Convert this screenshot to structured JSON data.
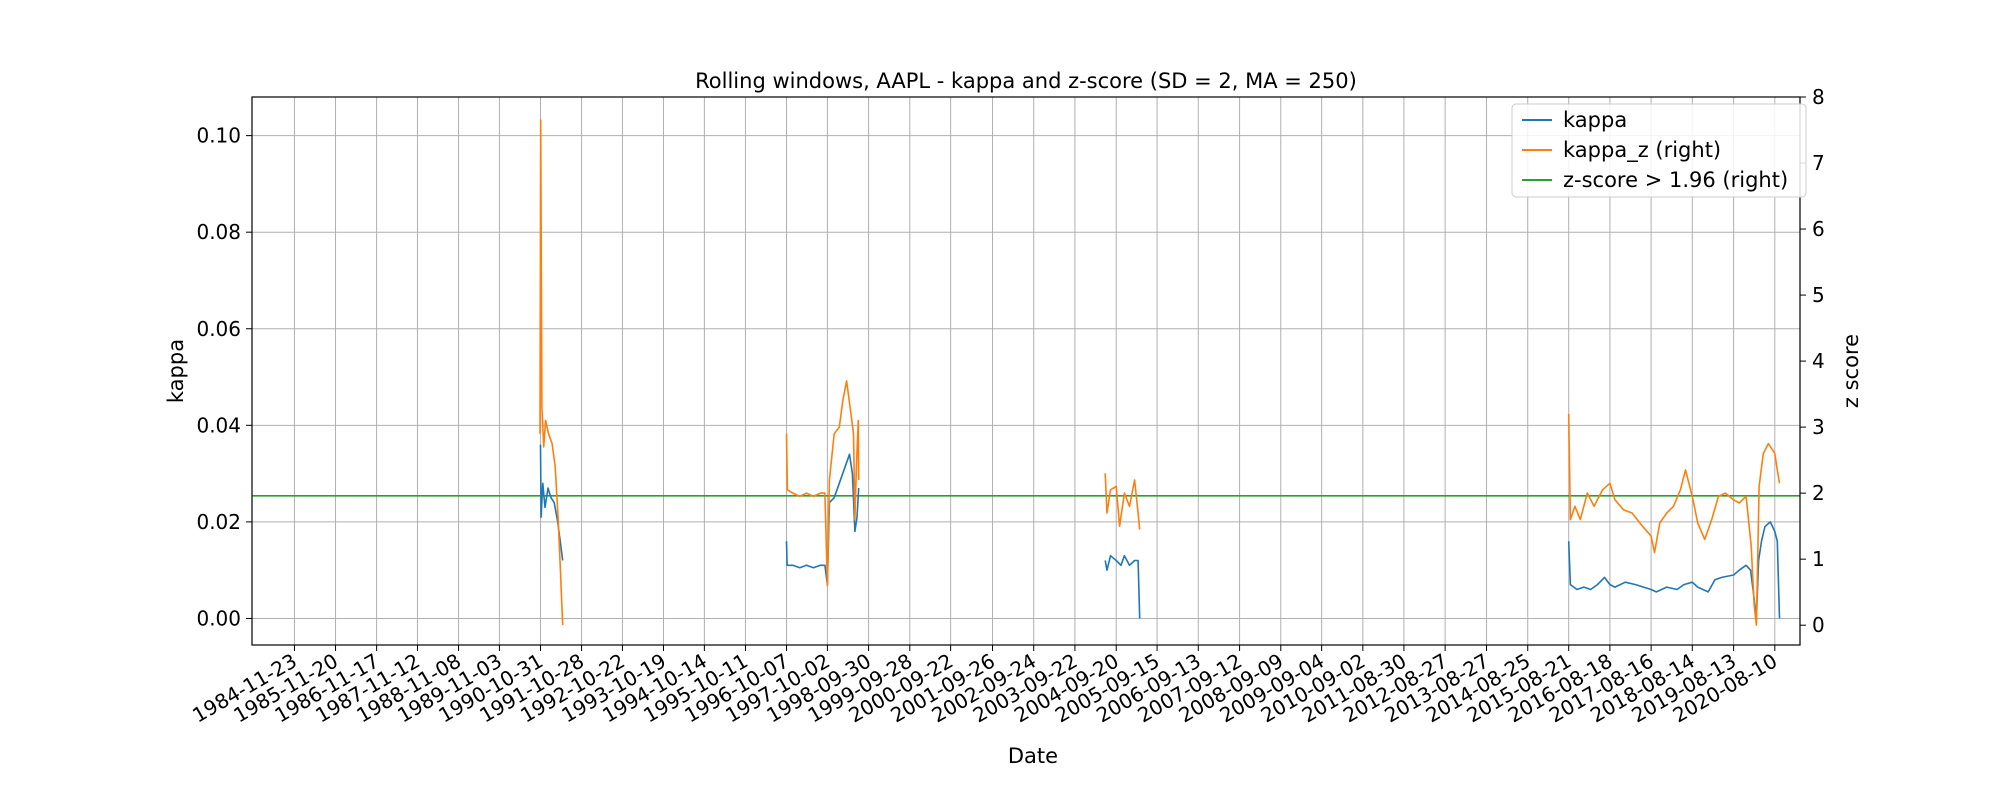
{
  "chart_data": {
    "type": "line",
    "title": "Rolling windows, AAPL - kappa and z-score (SD = 2, MA = 250)",
    "xlabel": "Date",
    "ylabel": "kappa",
    "ylabel_right": "z score",
    "x_tick_labels": [
      "1984-11-23",
      "1985-11-20",
      "1986-11-17",
      "1987-11-12",
      "1988-11-08",
      "1989-11-03",
      "1990-10-31",
      "1991-10-28",
      "1992-10-22",
      "1993-10-19",
      "1994-10-14",
      "1995-10-11",
      "1996-10-07",
      "1997-10-02",
      "1998-09-30",
      "1999-09-28",
      "2000-09-22",
      "2001-09-26",
      "2002-09-24",
      "2003-09-22",
      "2004-09-20",
      "2005-09-15",
      "2006-09-13",
      "2007-09-12",
      "2008-09-09",
      "2009-09-04",
      "2010-09-02",
      "2011-08-30",
      "2012-08-27",
      "2013-08-27",
      "2014-08-25",
      "2015-08-21",
      "2016-08-18",
      "2017-08-16",
      "2018-08-14",
      "2019-08-13",
      "2020-08-10"
    ],
    "x_range": [
      "1983-11-15",
      "2021-03-20"
    ],
    "ylim_left": [
      -0.0055,
      0.108
    ],
    "yticks_left": [
      "0.00",
      "0.02",
      "0.04",
      "0.06",
      "0.08",
      "0.10"
    ],
    "ylim_right": [
      -0.3,
      8.0
    ],
    "yticks_right": [
      "0",
      "1",
      "2",
      "3",
      "4",
      "5",
      "6",
      "7",
      "8"
    ],
    "grid": true,
    "legend_position": "top-right",
    "series": [
      {
        "name": "kappa",
        "axis": "left",
        "color": "#1f77b4",
        "segments": [
          [
            [
              "1990-10-31",
              0.036
            ],
            [
              "1990-11-05",
              0.021
            ],
            [
              "1990-11-20",
              0.028
            ],
            [
              "1990-12-10",
              0.023
            ],
            [
              "1991-01-05",
              0.027
            ],
            [
              "1991-02-01",
              0.025
            ],
            [
              "1991-03-01",
              0.024
            ],
            [
              "1991-04-01",
              0.02
            ],
            [
              "1991-05-15",
              0.012
            ]
          ],
          [
            [
              "1996-10-07",
              0.016
            ],
            [
              "1996-10-12",
              0.011
            ],
            [
              "1996-12-01",
              0.011
            ],
            [
              "1997-02-01",
              0.0105
            ],
            [
              "1997-04-01",
              0.011
            ],
            [
              "1997-06-01",
              0.0105
            ],
            [
              "1997-08-01",
              0.011
            ],
            [
              "1997-09-10",
              0.011
            ],
            [
              "1997-10-02",
              0.007
            ],
            [
              "1997-10-20",
              0.024
            ],
            [
              "1997-12-01",
              0.025
            ],
            [
              "1998-01-15",
              0.028
            ],
            [
              "1998-03-01",
              0.031
            ],
            [
              "1998-04-15",
              0.034
            ],
            [
              "1998-05-10",
              0.03
            ],
            [
              "1998-06-01",
              0.018
            ],
            [
              "1998-06-20",
              0.021
            ],
            [
              "1998-07-05",
              0.027
            ]
          ],
          [
            [
              "2004-06-15",
              0.012
            ],
            [
              "2004-07-01",
              0.01
            ],
            [
              "2004-08-01",
              0.013
            ],
            [
              "2004-09-20",
              0.012
            ],
            [
              "2004-11-01",
              0.011
            ],
            [
              "2004-12-01",
              0.013
            ],
            [
              "2005-01-15",
              0.011
            ],
            [
              "2005-03-01",
              0.012
            ],
            [
              "2005-04-01",
              0.012
            ],
            [
              "2005-04-15",
              0.0
            ]
          ],
          [
            [
              "2015-08-21",
              0.016
            ],
            [
              "2015-09-05",
              0.007
            ],
            [
              "2015-11-01",
              0.006
            ],
            [
              "2016-01-01",
              0.0065
            ],
            [
              "2016-03-01",
              0.006
            ],
            [
              "2016-05-01",
              0.007
            ],
            [
              "2016-07-01",
              0.0085
            ],
            [
              "2016-08-18",
              0.007
            ],
            [
              "2016-10-01",
              0.0065
            ],
            [
              "2017-01-01",
              0.0075
            ],
            [
              "2017-04-01",
              0.007
            ],
            [
              "2017-08-16",
              0.006
            ],
            [
              "2017-10-01",
              0.0055
            ],
            [
              "2018-01-01",
              0.0065
            ],
            [
              "2018-04-01",
              0.006
            ],
            [
              "2018-06-01",
              0.007
            ],
            [
              "2018-08-14",
              0.0075
            ],
            [
              "2018-10-01",
              0.0065
            ],
            [
              "2019-01-01",
              0.0055
            ],
            [
              "2019-03-01",
              0.008
            ],
            [
              "2019-05-01",
              0.0085
            ],
            [
              "2019-08-13",
              0.009
            ],
            [
              "2019-10-01",
              0.01
            ],
            [
              "2019-12-01",
              0.011
            ],
            [
              "2020-01-10",
              0.01
            ],
            [
              "2020-02-10",
              0.004
            ],
            [
              "2020-03-01",
              0.0
            ],
            [
              "2020-03-20",
              0.012
            ],
            [
              "2020-04-15",
              0.016
            ],
            [
              "2020-05-15",
              0.019
            ],
            [
              "2020-07-01",
              0.02
            ],
            [
              "2020-08-10",
              0.018
            ],
            [
              "2020-09-01",
              0.016
            ],
            [
              "2020-09-20",
              0.0
            ]
          ]
        ]
      },
      {
        "name": "kappa_z (right)",
        "axis": "right",
        "color": "#ff7f0e",
        "segments": [
          [
            [
              "1990-10-27",
              2.9
            ],
            [
              "1990-11-02",
              7.65
            ],
            [
              "1990-11-12",
              3.3
            ],
            [
              "1990-11-28",
              2.7
            ],
            [
              "1990-12-15",
              3.1
            ],
            [
              "1991-01-10",
              2.9
            ],
            [
              "1991-02-10",
              2.75
            ],
            [
              "1991-03-10",
              2.4
            ],
            [
              "1991-04-05",
              1.6
            ],
            [
              "1991-04-25",
              0.8
            ],
            [
              "1991-05-15",
              0.0
            ]
          ],
          [
            [
              "1996-10-07",
              2.9
            ],
            [
              "1996-10-15",
              2.05
            ],
            [
              "1996-12-01",
              2.0
            ],
            [
              "1997-02-01",
              1.95
            ],
            [
              "1997-04-01",
              2.0
            ],
            [
              "1997-06-01",
              1.95
            ],
            [
              "1997-08-01",
              2.0
            ],
            [
              "1997-09-10",
              2.0
            ],
            [
              "1997-10-02",
              0.6
            ],
            [
              "1997-10-20",
              2.2
            ],
            [
              "1997-12-01",
              2.9
            ],
            [
              "1998-01-15",
              3.0
            ],
            [
              "1998-02-15",
              3.4
            ],
            [
              "1998-03-20",
              3.7
            ],
            [
              "1998-04-20",
              3.3
            ],
            [
              "1998-05-20",
              2.9
            ],
            [
              "1998-06-01",
              1.6
            ],
            [
              "1998-06-15",
              2.4
            ],
            [
              "1998-07-01",
              3.1
            ],
            [
              "1998-07-05",
              2.2
            ]
          ],
          [
            [
              "2004-06-15",
              2.3
            ],
            [
              "2004-07-01",
              1.7
            ],
            [
              "2004-08-01",
              2.05
            ],
            [
              "2004-09-20",
              2.1
            ],
            [
              "2004-10-20",
              1.5
            ],
            [
              "2004-12-01",
              2.0
            ],
            [
              "2005-01-15",
              1.8
            ],
            [
              "2005-03-01",
              2.2
            ],
            [
              "2005-04-01",
              1.7
            ],
            [
              "2005-04-15",
              1.45
            ]
          ],
          [
            [
              "2015-08-21",
              3.2
            ],
            [
              "2015-09-05",
              1.6
            ],
            [
              "2015-10-15",
              1.8
            ],
            [
              "2015-12-01",
              1.6
            ],
            [
              "2016-02-01",
              2.0
            ],
            [
              "2016-04-01",
              1.8
            ],
            [
              "2016-06-15",
              2.05
            ],
            [
              "2016-08-18",
              2.15
            ],
            [
              "2016-10-01",
              1.9
            ],
            [
              "2016-12-15",
              1.75
            ],
            [
              "2017-03-01",
              1.7
            ],
            [
              "2017-06-01",
              1.5
            ],
            [
              "2017-08-16",
              1.35
            ],
            [
              "2017-09-15",
              1.1
            ],
            [
              "2017-11-01",
              1.55
            ],
            [
              "2018-01-01",
              1.7
            ],
            [
              "2018-03-01",
              1.8
            ],
            [
              "2018-05-01",
              2.05
            ],
            [
              "2018-06-15",
              2.35
            ],
            [
              "2018-08-14",
              1.95
            ],
            [
              "2018-10-01",
              1.55
            ],
            [
              "2018-12-01",
              1.3
            ],
            [
              "2019-02-01",
              1.6
            ],
            [
              "2019-04-01",
              1.95
            ],
            [
              "2019-06-01",
              2.0
            ],
            [
              "2019-08-13",
              1.9
            ],
            [
              "2019-10-01",
              1.85
            ],
            [
              "2019-12-01",
              1.95
            ],
            [
              "2020-01-15",
              1.2
            ],
            [
              "2020-02-10",
              0.3
            ],
            [
              "2020-03-01",
              0.0
            ],
            [
              "2020-03-25",
              2.1
            ],
            [
              "2020-05-01",
              2.6
            ],
            [
              "2020-06-15",
              2.75
            ],
            [
              "2020-08-10",
              2.6
            ],
            [
              "2020-09-01",
              2.35
            ],
            [
              "2020-09-20",
              2.15
            ]
          ]
        ]
      },
      {
        "name": "z-score > 1.96 (right)",
        "axis": "right",
        "color": "#2ca02c",
        "segments": [
          [
            [
              "1983-11-15",
              1.96
            ],
            [
              "2021-03-20",
              1.96
            ]
          ]
        ]
      }
    ]
  }
}
